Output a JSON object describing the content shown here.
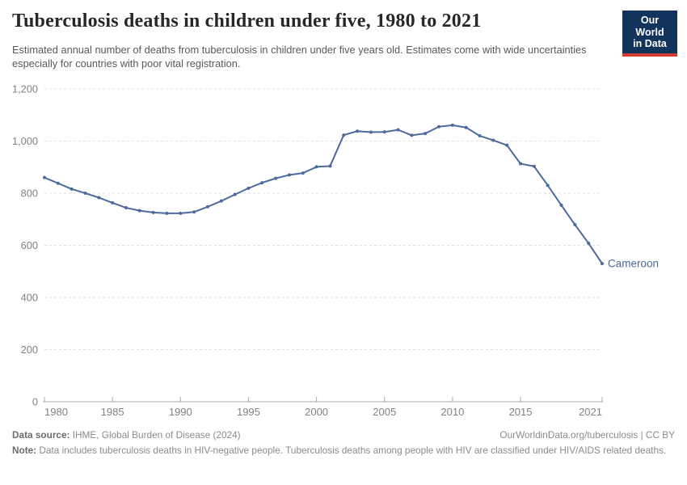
{
  "header": {
    "title": "Tuberculosis deaths in children under five, 1980 to 2021",
    "subtitle": "Estimated annual number of deaths from tuberculosis in children under five years old. Estimates come with wide uncertainties especially for countries with poor vital registration.",
    "logo": {
      "line1": "Our World",
      "line2": "in Data",
      "bg_color": "#12335c",
      "bar_color": "#d23d33"
    }
  },
  "chart_data": {
    "type": "line",
    "title": "Tuberculosis deaths in children under five, 1980 to 2021",
    "xlabel": "",
    "ylabel": "",
    "ylim": [
      0,
      1200
    ],
    "yticks": [
      0,
      200,
      400,
      600,
      800,
      1000,
      1200
    ],
    "ytick_labels": [
      "0",
      "200",
      "400",
      "600",
      "800",
      "1,000",
      "1,200"
    ],
    "xticks": [
      1980,
      1985,
      1990,
      1995,
      2000,
      2005,
      2010,
      2015,
      2021
    ],
    "xtick_labels": [
      "1980",
      "1985",
      "1990",
      "1995",
      "2000",
      "2005",
      "2010",
      "2015",
      "2021"
    ],
    "grid": "horizontal-dashed",
    "legend_position": "end-of-line-label",
    "x": [
      1980,
      1981,
      1982,
      1983,
      1984,
      1985,
      1986,
      1987,
      1988,
      1989,
      1990,
      1991,
      1992,
      1993,
      1994,
      1995,
      1996,
      1997,
      1998,
      1999,
      2000,
      2001,
      2002,
      2003,
      2004,
      2005,
      2006,
      2007,
      2008,
      2009,
      2010,
      2011,
      2012,
      2013,
      2014,
      2015,
      2016,
      2017,
      2018,
      2019,
      2020,
      2021
    ],
    "series": [
      {
        "name": "Cameroon",
        "color": "#4c6a9c",
        "values": [
          860,
          838,
          816,
          800,
          783,
          763,
          744,
          733,
          726,
          723,
          723,
          728,
          748,
          770,
          795,
          819,
          840,
          857,
          870,
          877,
          901,
          904,
          1023,
          1038,
          1034,
          1035,
          1043,
          1022,
          1029,
          1055,
          1061,
          1052,
          1020,
          1003,
          984,
          913,
          903,
          830,
          754,
          679,
          608,
          530
        ]
      }
    ],
    "colors": {
      "line": "#4c6a9c",
      "grid": "#dedede",
      "axis": "#a9a9a9",
      "tick_label": "#828282"
    }
  },
  "footer": {
    "source_label": "Data source:",
    "source_value": " IHME, Global Burden of Disease (2024)",
    "link_text": "OurWorldinData.org/tuberculosis | CC BY",
    "note_label": "Note:",
    "note_value": " Data includes tuberculosis deaths in HIV-negative people. Tuberculosis deaths among people with HIV are classified under HIV/AIDS related deaths."
  }
}
